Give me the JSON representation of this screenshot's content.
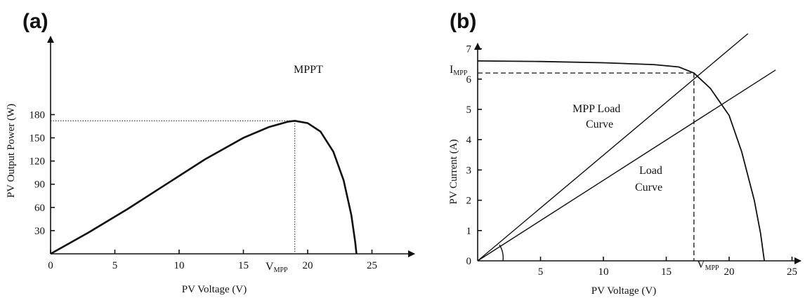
{
  "chart_data": [
    {
      "type": "line",
      "panel_label": "(a)",
      "xlabel": "PV Voltage (V)",
      "ylabel": "PV Output Power (W)",
      "xlim": [
        0,
        27
      ],
      "ylim": [
        0,
        200
      ],
      "x_ticks": [
        0,
        5,
        10,
        15,
        20,
        25
      ],
      "y_ticks": [
        30,
        60,
        90,
        120,
        150,
        180
      ],
      "mpp": {
        "x": 19,
        "y": 172
      },
      "annotations": {
        "mppt": "MPPT",
        "vmpp_main": "V",
        "vmpp_sub": "MPP"
      },
      "series": [
        {
          "x": [
            0,
            3,
            6,
            9,
            12,
            15,
            17,
            18.5,
            19,
            20,
            21,
            22,
            22.8,
            23.4,
            23.7,
            23.8
          ],
          "y": [
            0,
            28,
            58,
            90,
            122,
            150,
            164,
            171,
            172,
            169,
            158,
            132,
            95,
            50,
            15,
            0
          ]
        }
      ]
    },
    {
      "type": "line",
      "panel_label": "(b)",
      "xlabel": "PV Voltage  (V)",
      "ylabel": "PV Current (A)",
      "xlim": [
        0,
        26
      ],
      "ylim": [
        0,
        7.6
      ],
      "x_ticks": [
        5,
        10,
        15,
        20,
        25
      ],
      "y_ticks": [
        0,
        1,
        2,
        3,
        4,
        5,
        6,
        7
      ],
      "mpp": {
        "x": 17.2,
        "y": 6.2
      },
      "annotations": {
        "impp_main": "I",
        "impp_sub": "MPP",
        "vmpp_main": "V",
        "vmpp_sub": "MPP",
        "mpp_load_line1": "MPP Load",
        "mpp_load_line2": "Curve",
        "load_line1": "Load",
        "load_line2": "Curve"
      },
      "series": [
        {
          "x": [
            0,
            5,
            10,
            14,
            16,
            17.2,
            18.5,
            20,
            21,
            22,
            22.5,
            22.8
          ],
          "y": [
            6.6,
            6.58,
            6.54,
            6.48,
            6.4,
            6.2,
            5.7,
            4.8,
            3.6,
            2.0,
            0.9,
            0
          ]
        },
        {
          "x": [
            0,
            21.5
          ],
          "y": [
            0,
            7.5
          ]
        },
        {
          "x": [
            0,
            23.7
          ],
          "y": [
            0,
            6.3
          ]
        }
      ]
    }
  ]
}
